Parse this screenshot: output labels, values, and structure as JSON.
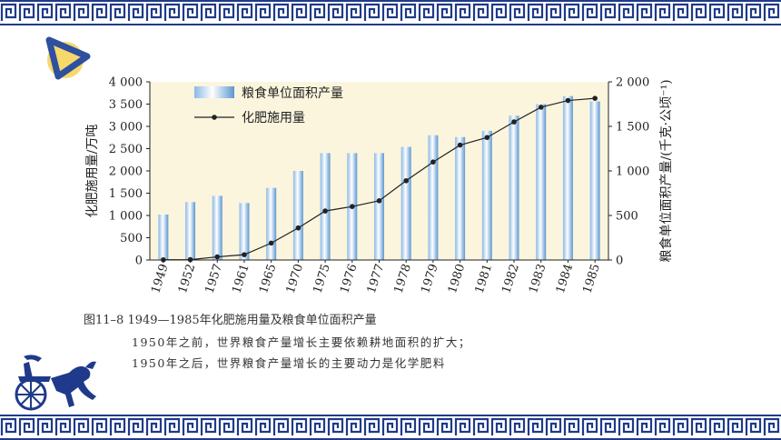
{
  "colors": {
    "border": "#1f3a8a",
    "plot_background": "#fbf5dd",
    "bar": "#6fa8dc",
    "line": "#222222",
    "logo_blue": "#2f4f9f",
    "logo_yellow": "#f6d86b"
  },
  "icons": {
    "logo": "circle-triangle-logo-icon",
    "chariot": "horse-chariot-icon"
  },
  "chart_data": {
    "type": "bar",
    "categories": [
      "1949",
      "1952",
      "1957",
      "1961",
      "1965",
      "1970",
      "1975",
      "1976",
      "1977",
      "1978",
      "1979",
      "1980",
      "1981",
      "1982",
      "1983",
      "1984",
      "1985"
    ],
    "series": [
      {
        "name": "粮食单位面积产量",
        "type": "bar",
        "axis": "right",
        "values": [
          510,
          650,
          720,
          640,
          810,
          1000,
          1200,
          1200,
          1200,
          1270,
          1400,
          1380,
          1450,
          1620,
          1750,
          1840,
          1780
        ]
      },
      {
        "name": "化肥施用量",
        "type": "line",
        "axis": "left",
        "values": [
          5,
          8,
          70,
          120,
          380,
          720,
          1100,
          1200,
          1330,
          1780,
          2200,
          2580,
          2750,
          3100,
          3430,
          3580,
          3630
        ]
      }
    ],
    "ylabel_left": "化肥施用量/万吨",
    "ylabel_right": "粮食单位面积产量/(千克·公顷⁻¹)",
    "ylim_left": [
      0,
      4000
    ],
    "ylim_right": [
      0,
      2000
    ],
    "yticks_left": [
      "0",
      "500",
      "1 000",
      "1 500",
      "2 000",
      "2 500",
      "3 000",
      "3 500",
      "4 000"
    ],
    "yticks_right": [
      "0",
      "500",
      "1 000",
      "1 500",
      "2 000"
    ],
    "legend_position": "top-left"
  },
  "caption": {
    "title": "图11–8  1949—1985年化肥施用量及粮食单位面积产量",
    "line1": "1950年之前，世界粮食产量增长主要依赖耕地面积的扩大；",
    "line2": "1950年之后，世界粮食产量增长的主要动力是化学肥料"
  }
}
